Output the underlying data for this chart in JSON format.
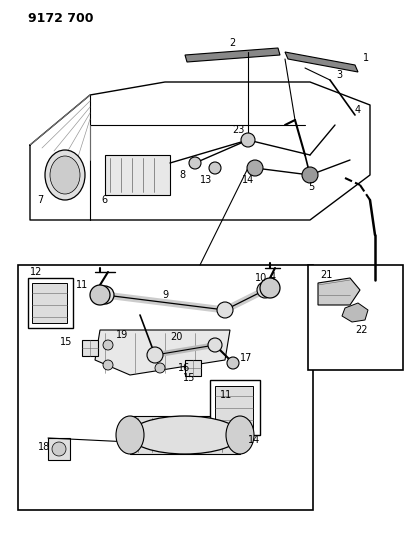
{
  "title": "9172 700",
  "bg_color": "#ffffff",
  "line_color": "#000000",
  "gray_color": "#666666",
  "fig_width": 4.11,
  "fig_height": 5.33,
  "dpi": 100,
  "title_fontsize": 9,
  "label_fontsize": 7
}
